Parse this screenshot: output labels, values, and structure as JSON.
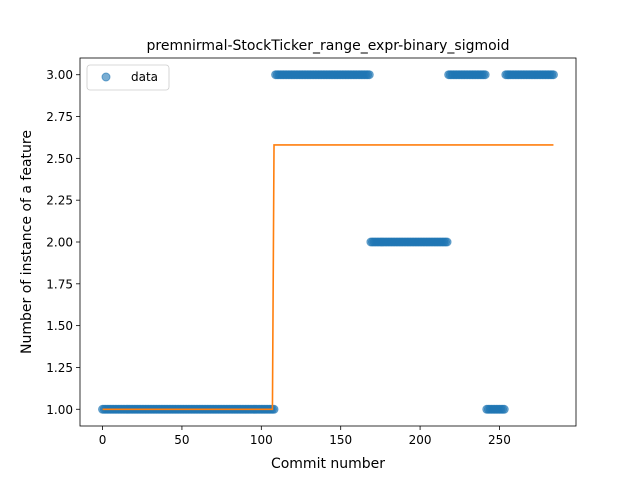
{
  "chart_data": {
    "type": "scatter",
    "title": "premnirmal-StockTicker_range_expr-binary_sigmoid",
    "xlabel": "Commit number",
    "ylabel": "Number of instance of a feature",
    "xlim": [
      -14.2,
      298.2
    ],
    "ylim": [
      0.9,
      3.1
    ],
    "x_ticks": [
      0,
      50,
      100,
      150,
      200,
      250
    ],
    "y_ticks": [
      1.0,
      1.25,
      1.5,
      1.75,
      2.0,
      2.25,
      2.5,
      2.75,
      3.0
    ],
    "y_tick_labels": [
      "1.00",
      "1.25",
      "1.50",
      "1.75",
      "2.00",
      "2.25",
      "2.50",
      "2.75",
      "3.00"
    ],
    "grid": false,
    "legend": {
      "position": "top-left",
      "entries": [
        "data"
      ]
    },
    "series": [
      {
        "name": "data",
        "kind": "points",
        "color": "#1f77b4",
        "alpha": 0.6,
        "segments": [
          {
            "x_start": 0,
            "x_end": 108,
            "y": 1
          },
          {
            "x_start": 109,
            "x_end": 168,
            "y": 3
          },
          {
            "x_start": 169,
            "x_end": 217,
            "y": 2
          },
          {
            "x_start": 218,
            "x_end": 241,
            "y": 3
          },
          {
            "x_start": 242,
            "x_end": 253,
            "y": 1
          },
          {
            "x_start": 254,
            "x_end": 284,
            "y": 3
          }
        ]
      },
      {
        "kind": "line",
        "color": "#ff7f0e",
        "x": [
          0,
          107,
          108,
          284
        ],
        "y": [
          1.0,
          1.0,
          2.58,
          2.58
        ]
      }
    ]
  }
}
